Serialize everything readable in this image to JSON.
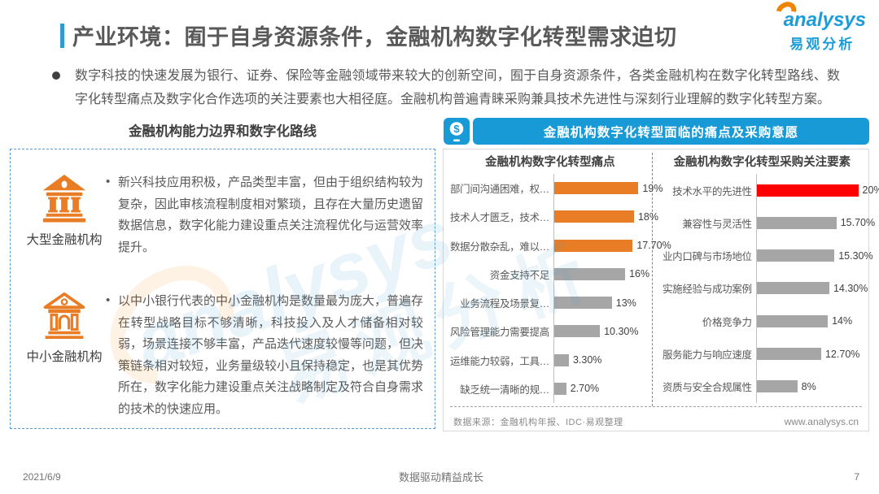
{
  "header": {
    "title": "产业环境：囿于自身资源条件，金融机构数字化转型需求迫切",
    "logo": {
      "brand": "analysys",
      "brand_cn": "易观分析"
    }
  },
  "intro": {
    "bullet": "数字科技的快速发展为银行、证券、保险等金融领域带来较大的创新空间，囿于自身资源条件，各类金融机构在数字化转型路线、数字化转型痛点及数字化合作选项的关注要素也大相径庭。金融机构普遍青睐采购兼具技术先进性与深刻行业理解的数字化转型方案。"
  },
  "left_section": {
    "title": "金融机构能力边界和数字化路线",
    "items": [
      {
        "icon": "bank-solid-icon",
        "label": "大型金融机构",
        "text": "新兴科技应用积极，产品类型丰富，但由于组织结构较为复杂，因此审核流程制度相对繁琐，且存在大量历史遗留数据信息，数字化能力建设重点关注流程优化与运营效率提升。"
      },
      {
        "icon": "bank-outline-icon",
        "label": "中小金融机构",
        "text": "以中小银行代表的中小金融机构是数量最为庞大，普遍存在转型战略目标不够清晰，科技投入及人才储备相对较弱，场景连接不够丰富，产品迭代速度较慢等问题，但决策链条相对较短，业务量级较小且保持稳定，也是其优势所在，数字化能力建设重点关注战略制定及符合自身需求的技术的快速应用。"
      }
    ]
  },
  "right_section": {
    "banner": "金融机构数字化转型面临的痛点及采购意愿",
    "banner_icon": "mobile-payment-icon",
    "source": "数据来源：金融机构年报、IDC·易观整理",
    "website": "www.analysys.cn"
  },
  "chart_data": [
    {
      "type": "bar",
      "orientation": "horizontal",
      "title": "金融机构数字化转型痛点",
      "categories": [
        "部门间沟通困难，权…",
        "技术人才匮乏，技术…",
        "数据分散杂乱，难以…",
        "资金支持不足",
        "业务流程及场景复…",
        "风险管理能力需要提高",
        "运维能力较弱，工具…",
        "缺乏统一清晰的规…"
      ],
      "values": [
        19,
        18,
        17.7,
        16,
        13,
        10.3,
        3.3,
        2.7
      ],
      "value_labels": [
        "19%",
        "18%",
        "17.70%",
        "16%",
        "13%",
        "10.30%",
        "3.30%",
        "2.70%"
      ],
      "bar_colors": [
        "#e87d26",
        "#e87d26",
        "#e87d26",
        "#a6a6a6",
        "#a6a6a6",
        "#a6a6a6",
        "#a6a6a6",
        "#a6a6a6"
      ],
      "xlim": [
        0,
        20
      ],
      "grid": false,
      "legend": "none"
    },
    {
      "type": "bar",
      "orientation": "horizontal",
      "title": "金融机构数字化转型采购关注要素",
      "categories": [
        "技术水平的先进性",
        "兼容性与灵活性",
        "业内口碑与市场地位",
        "实施经验与成功案例",
        "价格竞争力",
        "服务能力与响应速度",
        "资质与安全合规属性"
      ],
      "values": [
        20,
        15.7,
        15.3,
        14.3,
        14,
        12.7,
        8
      ],
      "value_labels": [
        "20%",
        "15.70%",
        "15.30%",
        "14.30%",
        "14%",
        "12.70%",
        "8%"
      ],
      "bar_colors": [
        "#ff0000",
        "#a6a6a6",
        "#a6a6a6",
        "#a6a6a6",
        "#a6a6a6",
        "#a6a6a6",
        "#a6a6a6"
      ],
      "xlim": [
        0,
        20
      ],
      "grid": false,
      "legend": "none"
    }
  ],
  "footer": {
    "date": "2021/6/9",
    "slogan": "数据驱动精益成长",
    "page": "7"
  },
  "watermark": {
    "text": "analysys",
    "text_cn": "易观分析"
  },
  "colors": {
    "accent_blue": "#189ad6",
    "logo_blue": "#1b9dd9",
    "logo_orange": "#f08300",
    "bar_orange": "#e87d26",
    "bar_red": "#ff0000",
    "bar_gray": "#a6a6a6",
    "panel_dash_blue": "#5b9bd5",
    "divider_dash_orange": "#e8603c"
  }
}
